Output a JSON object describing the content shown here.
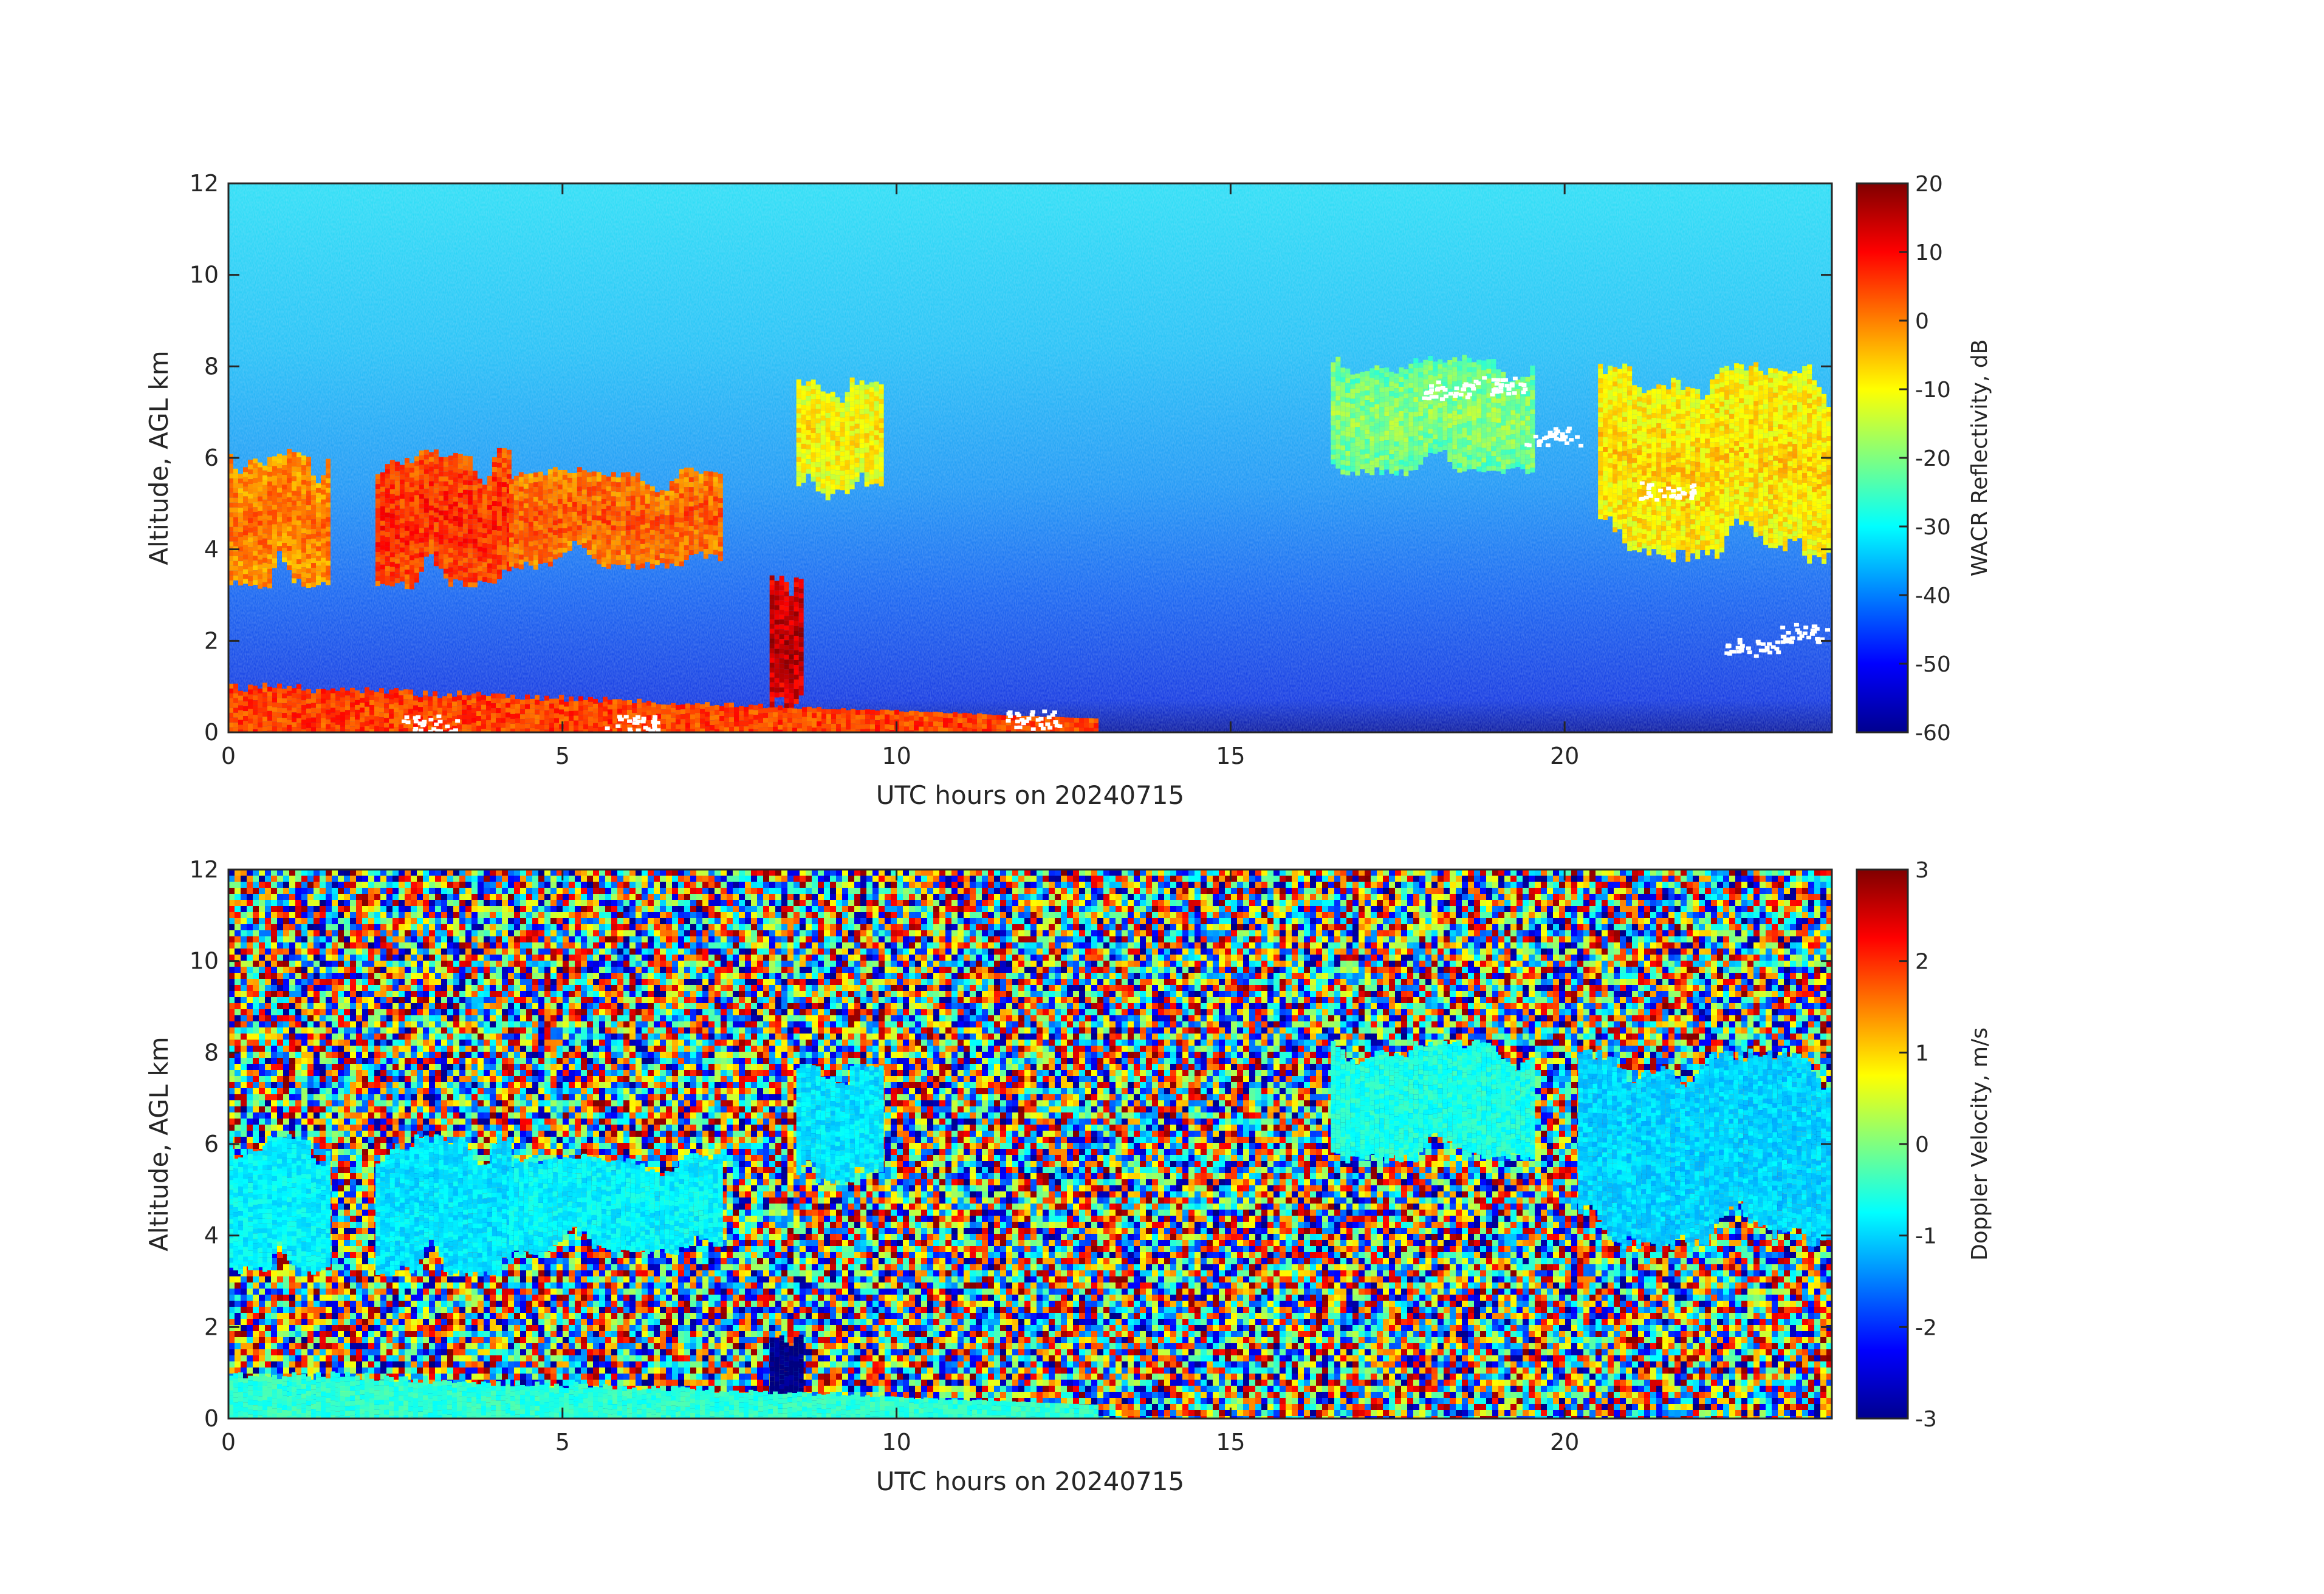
{
  "chart_data": [
    {
      "type": "heatmap",
      "name": "reflectivity",
      "xlabel": "UTC hours on 20240715",
      "ylabel": "Altitude, AGL km",
      "xlim": [
        0,
        24
      ],
      "ylim": [
        0,
        12
      ],
      "xticks": [
        0,
        5,
        10,
        15,
        20
      ],
      "yticks": [
        0,
        2,
        4,
        6,
        8,
        10,
        12
      ],
      "colorbar": {
        "label": "WACR Reflectivity, dB",
        "range": [
          -60,
          20
        ],
        "ticks": [
          20,
          10,
          0,
          -10,
          -20,
          -30,
          -40,
          -50,
          -60
        ],
        "colormap": "jet"
      },
      "background": "noise around -30 dB aloft decreasing to about -55 dB near the surface",
      "features": [
        {
          "kind": "cloud",
          "x": [
            0,
            1.5
          ],
          "y": [
            3.0,
            6.5
          ],
          "value_db": -2
        },
        {
          "kind": "cloud",
          "x": [
            2.2,
            4.2
          ],
          "y": [
            3.0,
            6.5
          ],
          "value_db": 4
        },
        {
          "kind": "cloud",
          "x": [
            4.2,
            7.4
          ],
          "y": [
            3.5,
            6.0
          ],
          "value_db": 0
        },
        {
          "kind": "precipitation",
          "x": [
            8.1,
            8.6
          ],
          "y": [
            0.2,
            3.8
          ],
          "value_db": 12
        },
        {
          "kind": "cloud",
          "x": [
            8.5,
            9.8
          ],
          "y": [
            5.0,
            8.0
          ],
          "value_db": -12
        },
        {
          "kind": "cloud",
          "x": [
            20.5,
            24
          ],
          "y": [
            3.5,
            8.5
          ],
          "value_db": -10
        },
        {
          "kind": "cloud",
          "x": [
            16.5,
            19.5
          ],
          "y": [
            5.5,
            8.5
          ],
          "value_db": -22
        },
        {
          "kind": "surface-clutter",
          "x": [
            0,
            13
          ],
          "y": [
            0,
            1.2
          ],
          "value_db": 5
        }
      ]
    },
    {
      "type": "heatmap",
      "name": "doppler-velocity",
      "xlabel": "UTC hours on 20240715",
      "ylabel": "Altitude, AGL km",
      "xlim": [
        0,
        24
      ],
      "ylim": [
        0,
        12
      ],
      "xticks": [
        0,
        5,
        10,
        15,
        20
      ],
      "yticks": [
        0,
        2,
        4,
        6,
        8,
        10,
        12
      ],
      "colorbar": {
        "label": "Doppler Velocity, m/s",
        "range": [
          -3,
          3
        ],
        "ticks": [
          3,
          2,
          1,
          0,
          -1,
          -2,
          -3
        ],
        "colormap": "jet"
      },
      "background": "random noise spanning -3 to 3 m/s",
      "features": [
        {
          "kind": "cloud",
          "x": [
            0,
            1.5
          ],
          "y": [
            3.0,
            6.5
          ],
          "value_ms": -0.8
        },
        {
          "kind": "cloud",
          "x": [
            2.2,
            4.2
          ],
          "y": [
            3.0,
            6.5
          ],
          "value_ms": -0.9
        },
        {
          "kind": "cloud",
          "x": [
            4.2,
            7.4
          ],
          "y": [
            3.5,
            6.0
          ],
          "value_ms": -0.8
        },
        {
          "kind": "precipitation",
          "x": [
            8.1,
            8.6
          ],
          "y": [
            0.2,
            2.0
          ],
          "value_ms": -3
        },
        {
          "kind": "cloud",
          "x": [
            8.5,
            9.8
          ],
          "y": [
            5.0,
            8.0
          ],
          "value_ms": -0.9
        },
        {
          "kind": "cloud",
          "x": [
            20.2,
            24
          ],
          "y": [
            3.5,
            8.5
          ],
          "value_ms": -1.0
        },
        {
          "kind": "cloud",
          "x": [
            16.5,
            19.5
          ],
          "y": [
            5.5,
            8.5
          ],
          "value_ms": -0.6
        },
        {
          "kind": "surface-clutter",
          "x": [
            0,
            13
          ],
          "y": [
            0,
            1.2
          ],
          "value_ms": -0.5
        }
      ]
    }
  ]
}
